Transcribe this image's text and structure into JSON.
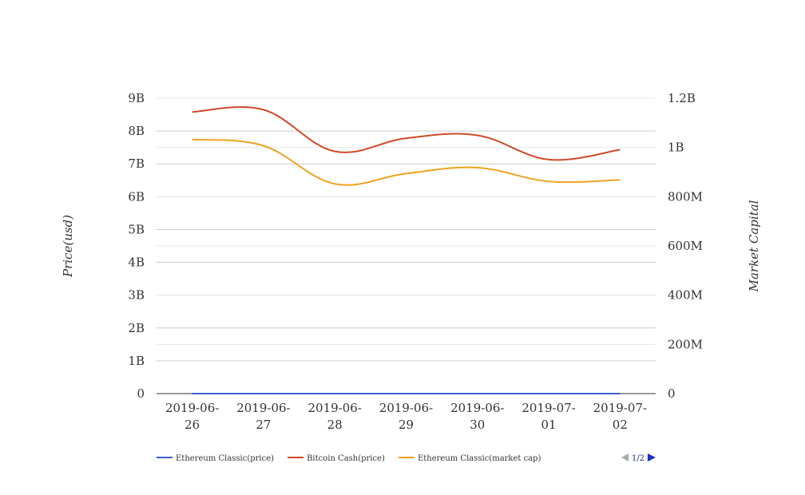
{
  "chart_data": {
    "type": "line",
    "categories": [
      "2019-06-26",
      "2019-06-27",
      "2019-06-28",
      "2019-06-29",
      "2019-06-30",
      "2019-07-01",
      "2019-07-02"
    ],
    "category_labels": [
      [
        "2019-06-",
        "26"
      ],
      [
        "2019-06-",
        "27"
      ],
      [
        "2019-06-",
        "28"
      ],
      [
        "2019-06-",
        "29"
      ],
      [
        "2019-06-",
        "30"
      ],
      [
        "2019-07-",
        "01"
      ],
      [
        "2019-07-",
        "02"
      ]
    ],
    "y_left": {
      "label": "Price(usd)",
      "ticks": [
        0,
        1000000000,
        2000000000,
        3000000000,
        4000000000,
        5000000000,
        6000000000,
        7000000000,
        8000000000,
        9000000000
      ],
      "tick_labels": [
        "0",
        "1B",
        "2B",
        "3B",
        "4B",
        "5B",
        "6B",
        "7B",
        "8B",
        "9B"
      ],
      "ylim": [
        0,
        9000000000
      ]
    },
    "y_right": {
      "label": "Market Capital",
      "ticks": [
        0,
        200000000,
        400000000,
        600000000,
        800000000,
        1000000000,
        1200000000
      ],
      "tick_labels": [
        "0",
        "200M",
        "400M",
        "600M",
        "800M",
        "1B",
        "1.2B"
      ],
      "ylim": [
        0,
        1200000000
      ]
    },
    "series": [
      {
        "name": "Ethereum Classic(price)",
        "axis": "left",
        "color": "#3a5fcd",
        "values": [
          6.5,
          6.3,
          5.9,
          6.1,
          6.2,
          5.6,
          5.7
        ]
      },
      {
        "name": "Bitcoin Cash(price)",
        "axis": "left",
        "color": "#d04a27",
        "values": [
          8580000000,
          8650000000,
          7380000000,
          7780000000,
          7870000000,
          7130000000,
          7430000000
        ]
      },
      {
        "name": "Ethereum Classic(market cap)",
        "axis": "right",
        "color": "#f0a21e",
        "values": [
          1032000000,
          1007000000,
          852000000,
          894000000,
          918000000,
          862000000,
          868000000
        ]
      },
      {
        "name": "",
        "axis": "left",
        "color": "#2e9a4a",
        "values": [
          320,
          330,
          300,
          310,
          312,
          290,
          295
        ]
      }
    ],
    "grid": true,
    "legend_position": "bottom-left",
    "legend_page": "1/2",
    "legend_page_colors": {
      "prev_disabled": "#aaaaaa",
      "next_active": "#1f2dcc"
    }
  }
}
